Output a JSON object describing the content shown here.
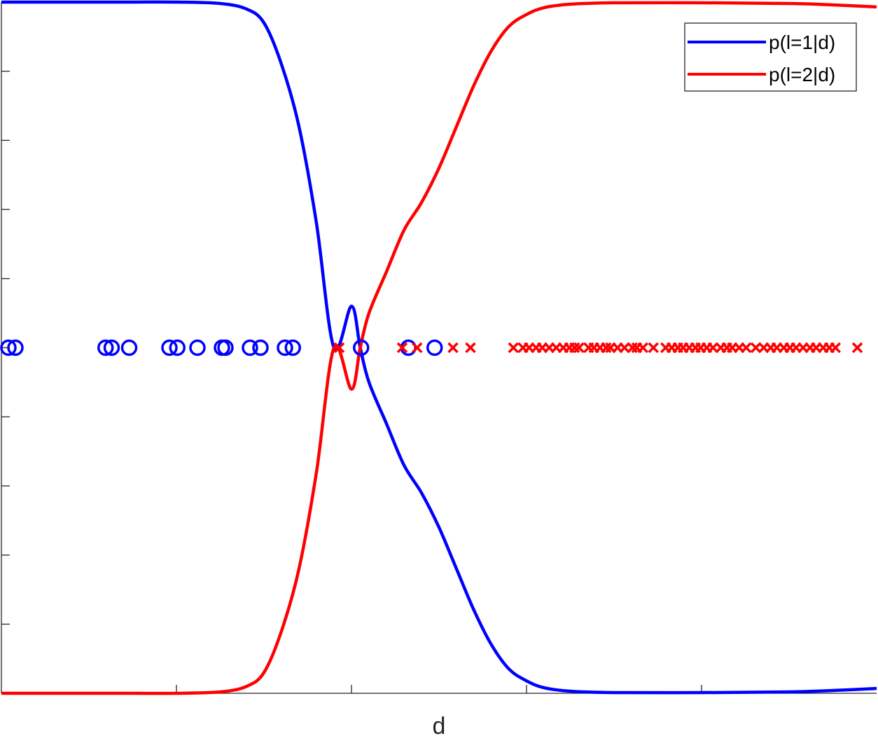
{
  "chart_data": {
    "type": "line",
    "title": "",
    "xlabel": "d",
    "ylabel": "",
    "xlim": [
      0,
      100
    ],
    "ylim": [
      0,
      1
    ],
    "x_ticks": [
      20,
      40,
      60,
      80
    ],
    "y_ticks": [
      0.1,
      0.2,
      0.3,
      0.4,
      0.5,
      0.6,
      0.7,
      0.8,
      0.9
    ],
    "tick_labels_shown": false,
    "grid": false,
    "legend_position": "top-right",
    "colors": {
      "class1": "#0000ff",
      "class2": "#ff0000",
      "axis": "#262626"
    },
    "series": [
      {
        "name": "p(l=1|d)",
        "color": "#0000ff",
        "x": [
          0,
          5,
          10,
          15,
          20,
          25,
          28,
          30,
          32,
          34,
          36,
          38,
          40,
          41,
          42,
          44,
          46,
          48,
          50,
          52,
          54,
          56,
          58,
          60,
          62,
          65,
          70,
          80,
          90,
          95,
          100
        ],
        "y": [
          1.0,
          1.0,
          1.0,
          1.0,
          1.0,
          0.998,
          0.99,
          0.97,
          0.91,
          0.82,
          0.68,
          0.5,
          0.56,
          0.5,
          0.45,
          0.39,
          0.33,
          0.29,
          0.24,
          0.18,
          0.12,
          0.07,
          0.035,
          0.018,
          0.008,
          0.003,
          0.001,
          0.001,
          0.002,
          0.004,
          0.007
        ]
      },
      {
        "name": "p(l=2|d)",
        "color": "#ff0000",
        "x": [
          0,
          5,
          10,
          15,
          20,
          25,
          28,
          30,
          32,
          34,
          36,
          38,
          40,
          41,
          42,
          44,
          46,
          48,
          50,
          52,
          54,
          56,
          58,
          60,
          62,
          65,
          70,
          80,
          90,
          95,
          100
        ],
        "y": [
          0.0,
          0.0,
          0.0,
          0.0,
          0.0,
          0.002,
          0.01,
          0.03,
          0.09,
          0.18,
          0.32,
          0.5,
          0.44,
          0.5,
          0.55,
          0.61,
          0.67,
          0.71,
          0.76,
          0.82,
          0.88,
          0.93,
          0.965,
          0.982,
          0.992,
          0.997,
          0.999,
          0.999,
          0.998,
          0.996,
          0.993
        ]
      }
    ],
    "points": {
      "y_level": 0.5,
      "class1_circles_x": [
        0.8,
        1.6,
        11.9,
        12.6,
        14.6,
        19.2,
        20.1,
        22.4,
        25.2,
        25.6,
        28.4,
        29.6,
        32.4,
        33.3,
        41.1,
        46.5,
        49.5
      ],
      "class2_crosses_x": [
        38.6,
        45.8,
        47.5,
        51.6,
        53.6,
        58.5,
        59.6,
        60.3,
        61.1,
        61.8,
        62.6,
        63.4,
        64.2,
        64.9,
        65.5,
        66.0,
        67.1,
        67.7,
        68.4,
        69.1,
        69.6,
        70.4,
        71.2,
        72.1,
        72.6,
        73.3,
        74.5,
        75.9,
        76.6,
        77.3,
        77.9,
        78.6,
        79.3,
        79.9,
        80.6,
        81.3,
        82.2,
        82.9,
        83.5,
        84.3,
        85.1,
        86.2,
        87.1,
        87.9,
        88.6,
        89.4,
        90.1,
        90.8,
        91.6,
        92.4,
        93.1,
        93.9,
        94.6,
        95.3,
        97.8
      ]
    }
  }
}
